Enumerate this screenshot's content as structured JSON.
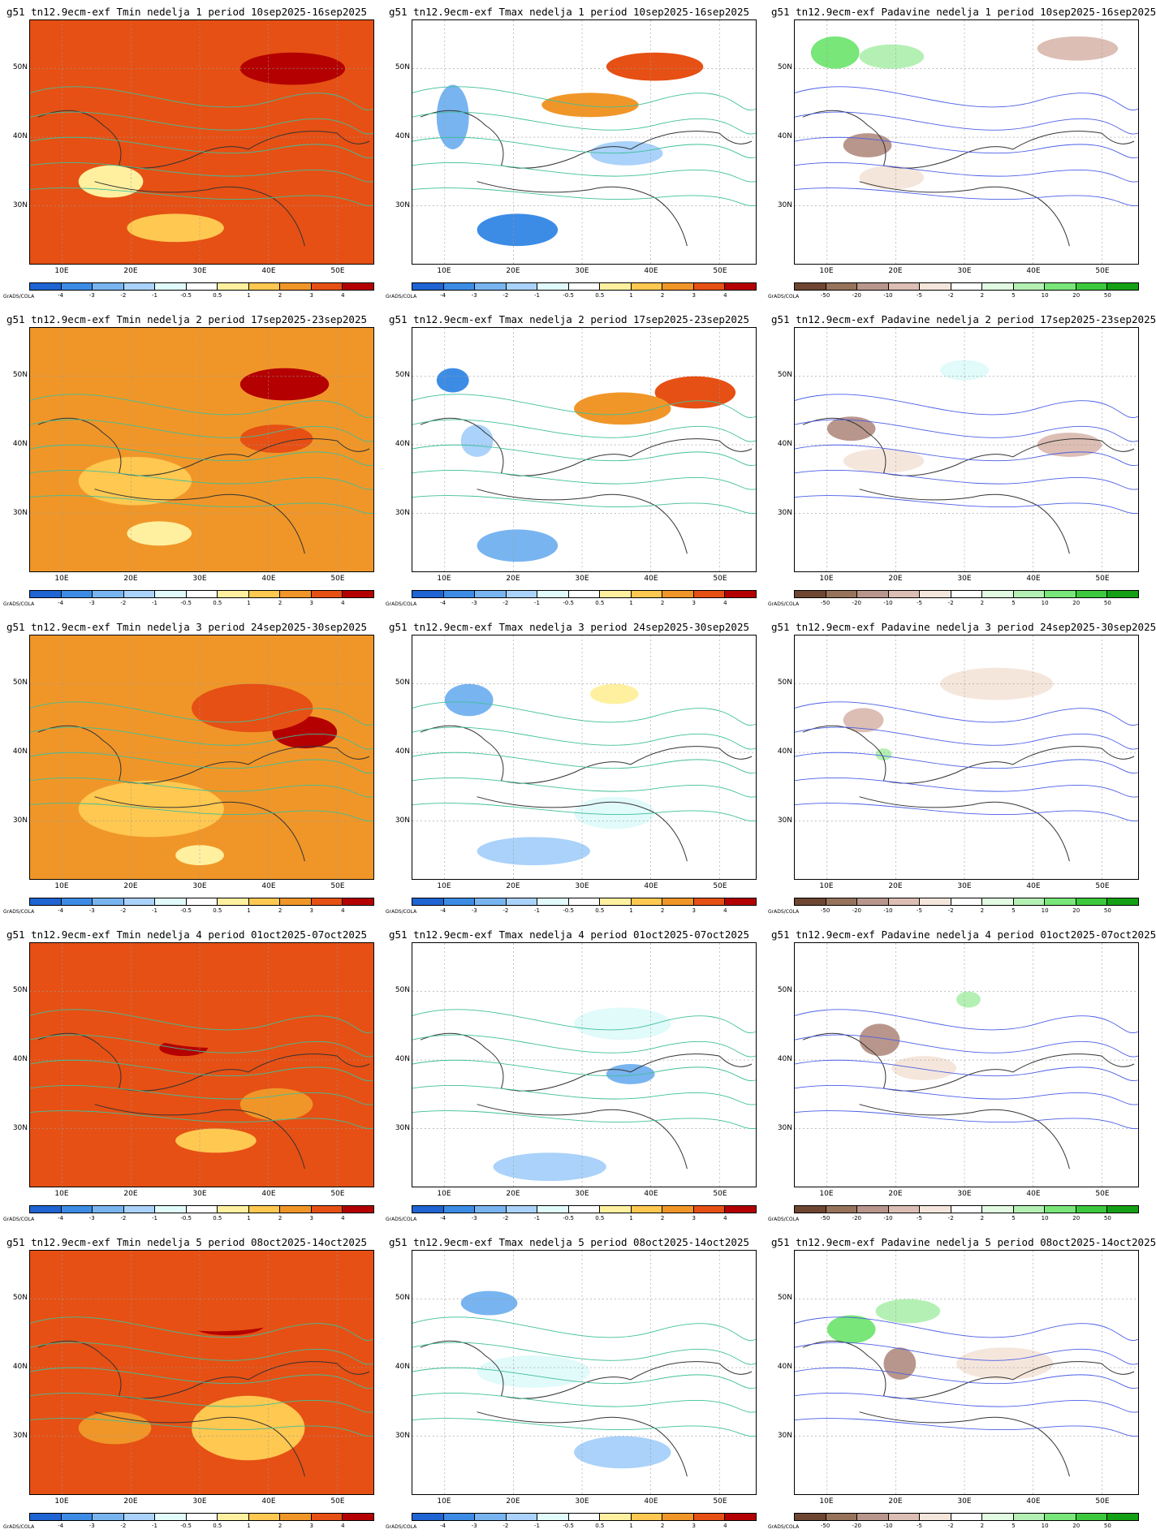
{
  "row_titles": [
    {
      "tmin": "g51 tn12.9ecm-exf Tmin nedelja 1 period 10sep2025-16sep2025",
      "tmax": "g51 tn12.9ecm-exf Tmax nedelja 1 period 10sep2025-16sep2025",
      "pad": "g51 tn12.9ecm-exf Padavine nedelja 1 period 10sep2025-16sep2025"
    },
    {
      "tmin": "g51 tn12.9ecm-exf Tmin nedelja 2 period 17sep2025-23sep2025",
      "tmax": "g51 tn12.9ecm-exf Tmax nedelja 2 period 17sep2025-23sep2025",
      "pad": "g51 tn12.9ecm-exf Padavine nedelja 2 period 17sep2025-23sep2025"
    },
    {
      "tmin": "g51 tn12.9ecm-exf Tmin nedelja 3 period 24sep2025-30sep2025",
      "tmax": "g51 tn12.9ecm-exf Tmax nedelja 3 period 24sep2025-30sep2025",
      "pad": "g51 tn12.9ecm-exf Padavine nedelja 3 period 24sep2025-30sep2025"
    },
    {
      "tmin": "g51 tn12.9ecm-exf Tmin nedelja 4 period 01oct2025-07oct2025",
      "tmax": "g51 tn12.9ecm-exf Tmax nedelja 4 period 01oct2025-07oct2025",
      "pad": "g51 tn12.9ecm-exf Padavine nedelja 4 period 01oct2025-07oct2025"
    },
    {
      "tmin": "g51 tn12.9ecm-exf Tmin nedelja 5 period 08oct2025-14oct2025",
      "tmax": "g51 tn12.9ecm-exf Tmax nedelja 5 period 08oct2025-14oct2025",
      "pad": "g51 tn12.9ecm-exf Padavine nedelja 5 period 08oct2025-14oct2025"
    }
  ],
  "lat_labels": [
    "50N",
    "40N",
    "30N"
  ],
  "lon_labels": [
    "10E",
    "20E",
    "30E",
    "40E",
    "50E"
  ],
  "credit": "GrADS/COLA",
  "temp_scale": {
    "labels": [
      "-4",
      "-3",
      "-2",
      "-1",
      "-0.5",
      "0.5",
      "1",
      "2",
      "3",
      "4"
    ],
    "colors": [
      "#1e64d2",
      "#3c8ce6",
      "#78b4f0",
      "#aad2fa",
      "#e1fafa",
      "#ffffff",
      "#fff0a0",
      "#ffc850",
      "#f09628",
      "#e65014",
      "#b40000"
    ]
  },
  "precip_scale": {
    "labels": [
      "-50",
      "-20",
      "-10",
      "-5",
      "-2",
      "2",
      "5",
      "10",
      "20",
      "50"
    ],
    "colors": [
      "#6e4632",
      "#96735a",
      "#b9968c",
      "#dcbeb4",
      "#f5e6dc",
      "#ffffff",
      "#e1fae1",
      "#b4f0b4",
      "#78e678",
      "#3cc83c",
      "#14a014"
    ]
  },
  "panel_fill": [
    {
      "tmin": "#e65014",
      "tmax": "#ffffff",
      "pad": "#ffffff"
    },
    {
      "tmin": "#f09628",
      "tmax": "#ffffff",
      "pad": "#ffffff"
    },
    {
      "tmin": "#f09628",
      "tmax": "#ffffff",
      "pad": "#ffffff"
    },
    {
      "tmin": "#e65014",
      "tmax": "#ffffff",
      "pad": "#ffffff"
    },
    {
      "tmin": "#e65014",
      "tmax": "#ffffff",
      "pad": "#ffffff"
    }
  ]
}
